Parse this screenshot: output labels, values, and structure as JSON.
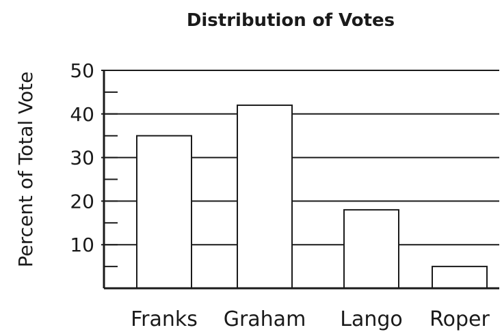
{
  "chart_data": {
    "type": "bar",
    "title": "Distribution of Votes",
    "xlabel": "",
    "ylabel": "Percent of Total Vote",
    "categories": [
      "Franks",
      "Graham",
      "Lango",
      "Roper"
    ],
    "values": [
      35,
      42,
      18,
      5
    ],
    "ylim": [
      0,
      50
    ],
    "yticks": [
      10,
      20,
      30,
      40,
      50
    ],
    "grid": true,
    "colors": {
      "bar_fill": "#ffffff",
      "stroke": "#1a1a1a"
    }
  }
}
